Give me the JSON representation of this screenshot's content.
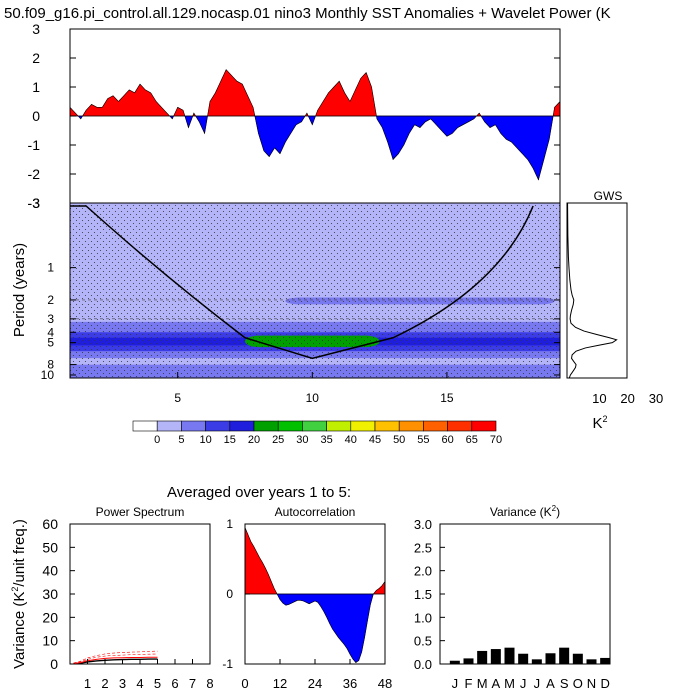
{
  "figure_title": "50.f09_g16.pi_control.all.129.nocasp.01 nino3 Monthly SST Anomalies + Wavelet Power (K",
  "subtitle": "Averaged over years 1 to 5:",
  "colors": {
    "positive": "#ff0000",
    "negative": "#0000ff",
    "stipple": "#333333"
  },
  "chart_data": [
    {
      "id": "sst",
      "type": "area",
      "title": "",
      "xlim": [
        1,
        19.2
      ],
      "ylim": [
        -3,
        3
      ],
      "yticks": [
        3,
        2,
        1,
        0,
        -1,
        -2,
        -3
      ],
      "x": [
        1.0,
        1.2,
        1.4,
        1.6,
        1.8,
        2.0,
        2.2,
        2.4,
        2.6,
        2.8,
        3.0,
        3.2,
        3.4,
        3.6,
        3.8,
        4.0,
        4.2,
        4.4,
        4.6,
        4.8,
        5.0,
        5.2,
        5.4,
        5.6,
        5.8,
        6.0,
        6.2,
        6.4,
        6.6,
        6.8,
        7.0,
        7.2,
        7.4,
        7.6,
        7.8,
        8.0,
        8.2,
        8.4,
        8.6,
        8.8,
        9.0,
        9.2,
        9.4,
        9.6,
        9.8,
        10.0,
        10.2,
        10.4,
        10.6,
        10.8,
        11.0,
        11.2,
        11.4,
        11.6,
        11.8,
        12.0,
        12.2,
        12.4,
        12.6,
        12.8,
        13.0,
        13.2,
        13.4,
        13.6,
        13.8,
        14.0,
        14.2,
        14.4,
        14.6,
        14.8,
        15.0,
        15.2,
        15.4,
        15.6,
        15.8,
        16.0,
        16.2,
        16.4,
        16.6,
        16.8,
        17.0,
        17.2,
        17.4,
        17.6,
        17.8,
        18.0,
        18.2,
        18.4,
        18.6,
        18.8,
        19.0,
        19.2
      ],
      "values": [
        0.3,
        0.1,
        -0.1,
        0.2,
        0.4,
        0.3,
        0.3,
        0.6,
        0.7,
        0.5,
        0.7,
        0.9,
        0.8,
        1.1,
        0.9,
        0.8,
        0.5,
        0.3,
        0.1,
        -0.1,
        0.3,
        0.2,
        -0.4,
        0.1,
        -0.2,
        -0.6,
        0.5,
        0.8,
        1.2,
        1.6,
        1.4,
        1.2,
        1.1,
        0.7,
        0.3,
        -0.6,
        -1.2,
        -1.4,
        -1.1,
        -1.3,
        -0.9,
        -0.6,
        -0.3,
        -0.2,
        0.1,
        -0.3,
        0.2,
        0.5,
        0.8,
        1.0,
        1.2,
        0.8,
        0.5,
        0.9,
        1.3,
        1.5,
        1.0,
        -0.1,
        -0.4,
        -0.9,
        -1.5,
        -1.3,
        -1.0,
        -0.6,
        -0.3,
        -0.4,
        -0.2,
        -0.1,
        -0.3,
        -0.5,
        -0.7,
        -0.6,
        -0.4,
        -0.3,
        -0.2,
        -0.1,
        0.1,
        -0.2,
        -0.4,
        -0.3,
        -0.6,
        -0.8,
        -0.9,
        -1.1,
        -1.3,
        -1.5,
        -1.8,
        -2.2,
        -1.5,
        -0.8,
        0.3,
        0.5
      ]
    },
    {
      "id": "wavelet",
      "type": "heatmap",
      "title": "",
      "ylabel": "Period (years)",
      "xlim": [
        1,
        19.2
      ],
      "xticks": [
        5,
        10,
        15
      ],
      "yticks": [
        1,
        2,
        3,
        4,
        5,
        8,
        10
      ],
      "ylim_log_years": [
        0.25,
        10.67
      ],
      "significance_periods": [
        2,
        3
      ],
      "cone_apex": {
        "x": 10,
        "period": 7.0
      },
      "contour_levels": [
        0,
        5,
        10,
        15,
        20,
        25,
        30,
        35,
        40,
        45,
        50,
        55,
        60,
        65,
        70
      ],
      "level_colors": [
        "#ffffff",
        "#b4b4f8",
        "#7878f0",
        "#3c3ce6",
        "#1e1edc",
        "#00a000",
        "#00c000",
        "#40d040",
        "#c0f000",
        "#f0f000",
        "#ffc000",
        "#ff9000",
        "#ff6000",
        "#ff3000",
        "#ff0000"
      ],
      "power_bands": [
        {
          "period_min": 0.25,
          "period_max": 4.0,
          "power": 3
        },
        {
          "period_min": 1.9,
          "period_max": 2.2,
          "x_start": 9.0,
          "x_end": 19.0,
          "power": 7
        },
        {
          "period_min": 3.2,
          "period_max": 7.0,
          "x_start": 1.0,
          "x_end": 19.2,
          "power": 8
        },
        {
          "period_min": 4.0,
          "period_max": 6.0,
          "x_start": 1.0,
          "x_end": 19.2,
          "power": 13
        },
        {
          "period_min": 4.5,
          "period_max": 5.3,
          "x_start": 1.0,
          "x_end": 19.2,
          "power": 18
        },
        {
          "period_min": 4.3,
          "period_max": 5.5,
          "x_start": 7.5,
          "x_end": 12.5,
          "power": 22
        },
        {
          "period_min": 7.0,
          "period_max": 8.0,
          "x_start": 1.0,
          "x_end": 19.2,
          "power": 3
        },
        {
          "period_min": 8.0,
          "period_max": 10.67,
          "x_start": 1.0,
          "x_end": 19.2,
          "power": 8
        }
      ]
    },
    {
      "id": "gws",
      "type": "line",
      "title": "GWS",
      "xlabel": "K",
      "xlabel_sup": "2",
      "xticks": [
        10,
        20,
        30
      ],
      "xlim": [
        0,
        30
      ],
      "periods": [
        0.25,
        0.5,
        0.8,
        1.0,
        1.3,
        1.6,
        1.8,
        2.0,
        2.2,
        2.5,
        2.8,
        3.0,
        3.3,
        3.6,
        3.9,
        4.2,
        4.5,
        4.7,
        5.0,
        5.3,
        5.6,
        6.0,
        6.5,
        7.0,
        7.5,
        8.0,
        8.5,
        9.0,
        9.5,
        10.0,
        10.67
      ],
      "values": [
        0.2,
        0.3,
        0.5,
        0.7,
        1.0,
        1.4,
        1.8,
        2.4,
        2.2,
        1.6,
        1.2,
        1.1,
        1.4,
        3.0,
        6.0,
        10.5,
        15.0,
        17.5,
        16.0,
        11.0,
        6.5,
        3.2,
        1.8,
        1.6,
        2.4,
        3.2,
        3.0,
        2.4,
        1.8,
        1.2,
        0.8
      ]
    },
    {
      "id": "power-spectrum",
      "type": "line",
      "title": "Power Spectrum",
      "ylabel": "Variance (K",
      "ylabel_sup": "2",
      "ylabel_tail": "/unit freq.)",
      "xlim": [
        0,
        8
      ],
      "ylim": [
        0,
        60
      ],
      "xticks": [
        1,
        2,
        3,
        4,
        5,
        6,
        7,
        8
      ],
      "yticks": [
        0,
        10,
        20,
        30,
        40,
        50,
        60
      ],
      "x": [
        0.2,
        0.6,
        1.0,
        1.5,
        2.0,
        2.5,
        3.0,
        3.5,
        4.0,
        4.5,
        5.0
      ],
      "series": [
        {
          "values": [
            0.1,
            0.4,
            0.9,
            1.3,
            1.6,
            1.8,
            1.9,
            2.0,
            2.0,
            2.1,
            2.1
          ],
          "color": "#000000",
          "width": 1.4
        },
        {
          "values": [
            0.2,
            0.6,
            1.4,
            2.0,
            2.4,
            2.6,
            2.7,
            2.8,
            2.8,
            2.9,
            2.9
          ],
          "color": "#ff0000",
          "width": 1.0
        },
        {
          "values": [
            0.3,
            0.9,
            2.0,
            2.9,
            3.4,
            3.7,
            3.8,
            4.0,
            4.1,
            4.2,
            4.3
          ],
          "color": "#ff0000",
          "width": 0.6,
          "dash": "3,2"
        },
        {
          "values": [
            0.4,
            1.2,
            2.6,
            3.6,
            4.3,
            4.7,
            4.9,
            5.1,
            5.2,
            5.4,
            5.5
          ],
          "color": "#ff0000",
          "width": 0.6,
          "dash": "3,2"
        }
      ]
    },
    {
      "id": "autocorrelation",
      "type": "area",
      "title": "Autocorrelation",
      "xlim": [
        0,
        48
      ],
      "ylim": [
        -1,
        1
      ],
      "xticks": [
        0,
        12,
        24,
        36,
        48
      ],
      "yticks": [
        1,
        0,
        -1
      ],
      "x": [
        0,
        1,
        2,
        3,
        4,
        5,
        6,
        7,
        8,
        9,
        10,
        11,
        12,
        13,
        14,
        15,
        16,
        17,
        18,
        19,
        20,
        21,
        22,
        23,
        24,
        25,
        26,
        27,
        28,
        29,
        30,
        31,
        32,
        33,
        34,
        35,
        36,
        37,
        38,
        39,
        40,
        41,
        42,
        43,
        44,
        45,
        46,
        47,
        48
      ],
      "values": [
        0.95,
        0.85,
        0.75,
        0.68,
        0.6,
        0.52,
        0.45,
        0.37,
        0.28,
        0.18,
        0.08,
        0.0,
        -0.08,
        -0.13,
        -0.16,
        -0.15,
        -0.13,
        -0.11,
        -0.09,
        -0.09,
        -0.1,
        -0.12,
        -0.14,
        -0.12,
        -0.1,
        -0.12,
        -0.18,
        -0.25,
        -0.33,
        -0.42,
        -0.5,
        -0.56,
        -0.62,
        -0.67,
        -0.72,
        -0.78,
        -0.86,
        -0.93,
        -0.98,
        -0.95,
        -0.83,
        -0.62,
        -0.38,
        -0.15,
        0.0,
        0.05,
        0.08,
        0.12,
        0.18
      ]
    },
    {
      "id": "variance",
      "type": "bar",
      "title": "Variance (K",
      "title_sup": "2",
      "title_tail": ")",
      "ylim": [
        0,
        3
      ],
      "yticks": [
        "0.0",
        "0.5",
        "1.0",
        "1.5",
        "2.0",
        "2.5",
        "3.0"
      ],
      "categories": [
        "J",
        "F",
        "M",
        "A",
        "M",
        "J",
        "J",
        "A",
        "S",
        "O",
        "N",
        "D"
      ],
      "values": [
        0.07,
        0.12,
        0.28,
        0.32,
        0.35,
        0.22,
        0.1,
        0.23,
        0.35,
        0.22,
        0.1,
        0.13
      ]
    }
  ]
}
